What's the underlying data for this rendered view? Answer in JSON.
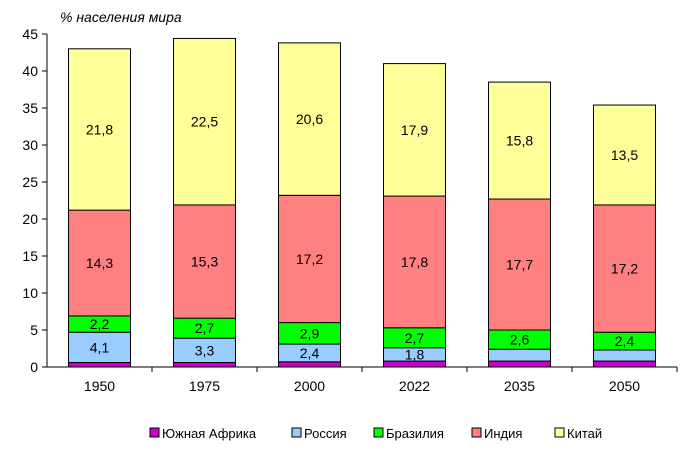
{
  "chart_data": {
    "type": "bar",
    "stacked": true,
    "ylabel": "% населения мира",
    "ylim": [
      0,
      45
    ],
    "yticks": [
      0,
      5,
      10,
      15,
      20,
      25,
      30,
      35,
      40,
      45
    ],
    "grid": false,
    "legend_position": "bottom",
    "categories": [
      "1950",
      "1975",
      "2000",
      "2022",
      "2035",
      "2050"
    ],
    "series": [
      {
        "name": "Южная Африка",
        "color": "#cc00cc",
        "values": [
          0.6,
          0.6,
          0.7,
          0.8,
          0.8,
          0.8
        ],
        "labels": [
          "",
          "",
          "",
          "",
          "",
          ""
        ]
      },
      {
        "name": "Россия",
        "color": "#99ccff",
        "values": [
          4.1,
          3.3,
          2.4,
          1.8,
          1.6,
          1.5
        ],
        "labels": [
          "4,1",
          "3,3",
          "2,4",
          "1,8",
          "",
          ""
        ]
      },
      {
        "name": "Бразилия",
        "color": "#00ff00",
        "values": [
          2.2,
          2.7,
          2.9,
          2.7,
          2.6,
          2.4
        ],
        "labels": [
          "2,2",
          "2,7",
          "2,9",
          "2,7",
          "2,6",
          "2,4"
        ]
      },
      {
        "name": "Индия",
        "color": "#ff8080",
        "values": [
          14.3,
          15.3,
          17.2,
          17.8,
          17.7,
          17.2
        ],
        "labels": [
          "14,3",
          "15,3",
          "17,2",
          "17,8",
          "17,7",
          "17,2"
        ]
      },
      {
        "name": "Китай",
        "color": "#ffff99",
        "values": [
          21.8,
          22.5,
          20.6,
          17.9,
          15.8,
          13.5
        ],
        "labels": [
          "21,8",
          "22,5",
          "20,6",
          "17,9",
          "15,8",
          "13,5"
        ]
      }
    ]
  }
}
